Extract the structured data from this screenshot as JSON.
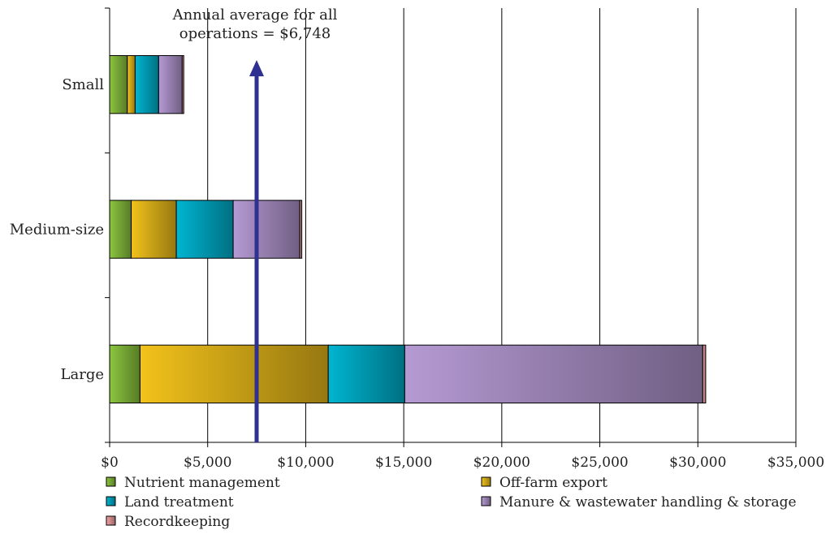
{
  "chart_data": {
    "type": "bar",
    "orientation": "horizontal",
    "stacked": true,
    "categories": [
      "Small",
      "Medium-size",
      "Large"
    ],
    "series": [
      {
        "name": "Nutrient management",
        "color": "#8cc63f",
        "values": [
          900,
          1100,
          1550
        ]
      },
      {
        "name": "Off-farm export",
        "color": "#f2c21b",
        "values": [
          400,
          2300,
          9600
        ]
      },
      {
        "name": "Land treatment",
        "color": "#00b5d1",
        "values": [
          1200,
          2900,
          3900
        ]
      },
      {
        "name": "Manure & wastewater handling & storage",
        "color": "#b59ad3",
        "values": [
          1200,
          3400,
          15200
        ]
      },
      {
        "name": "Recordkeeping",
        "color": "#f4a3a3",
        "values": [
          80,
          100,
          150
        ]
      }
    ],
    "xlim": [
      0,
      35000
    ],
    "x_ticks": [
      "$0",
      "$5,000",
      "$10,000",
      "$15,000",
      "$20,000",
      "$25,000",
      "$30,000",
      "$35,000"
    ],
    "grid": true,
    "legend_position": "bottom",
    "annotation": {
      "text_line1": "Annual average for all",
      "text_line2": "operations = $6,748",
      "arrow_color": "#2e3192"
    }
  }
}
